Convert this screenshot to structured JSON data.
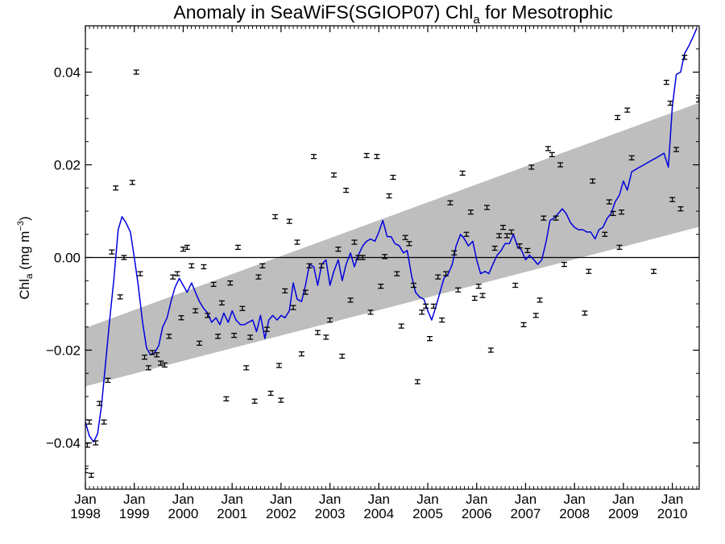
{
  "chart_data": {
    "type": "scatter",
    "title": {
      "prefix": "Anomaly in SeaWiFS(SGIOP07) Chl",
      "sub": "a",
      "suffix": " for Mesotrophic"
    },
    "ylabel": {
      "main": "Chl",
      "sub": "a",
      "unit_prefix": " (mg m",
      "unit_exp": "−3",
      "unit_suffix": ")"
    },
    "xlim": [
      1998.0,
      2010.55
    ],
    "ylim": [
      -0.05,
      0.05
    ],
    "yticks": [
      {
        "value": -0.04,
        "label": "−0.04"
      },
      {
        "value": -0.02,
        "label": "−0.02"
      },
      {
        "value": 0.0,
        "label": "0.00"
      },
      {
        "value": 0.02,
        "label": "0.02"
      },
      {
        "value": 0.04,
        "label": "0.04"
      }
    ],
    "xticks": [
      {
        "value": 1998,
        "month": "Jan",
        "year": "1998"
      },
      {
        "value": 1999,
        "month": "Jan",
        "year": "1999"
      },
      {
        "value": 2000,
        "month": "Jan",
        "year": "2000"
      },
      {
        "value": 2001,
        "month": "Jan",
        "year": "2001"
      },
      {
        "value": 2002,
        "month": "Jan",
        "year": "2002"
      },
      {
        "value": 2003,
        "month": "Jan",
        "year": "2003"
      },
      {
        "value": 2004,
        "month": "Jan",
        "year": "2004"
      },
      {
        "value": 2005,
        "month": "Jan",
        "year": "2005"
      },
      {
        "value": 2006,
        "month": "Jan",
        "year": "2006"
      },
      {
        "value": 2007,
        "month": "Jan",
        "year": "2007"
      },
      {
        "value": 2008,
        "month": "Jan",
        "year": "2008"
      },
      {
        "value": 2009,
        "month": "Jan",
        "year": "2009"
      },
      {
        "value": 2010,
        "month": "Jan",
        "year": "2010"
      }
    ],
    "zero_line": 0.0,
    "trend_band": {
      "color": "#bebebe",
      "x": [
        1998.0,
        2010.55
      ],
      "lower": [
        -0.0278,
        0.0066
      ],
      "upper": [
        -0.0152,
        0.0334
      ]
    },
    "smoothed_line": {
      "color": "#0000dd",
      "points": [
        [
          1998.0,
          -0.0355
        ],
        [
          1998.08,
          -0.0385
        ],
        [
          1998.17,
          -0.0398
        ],
        [
          1998.25,
          -0.038
        ],
        [
          1998.33,
          -0.032
        ],
        [
          1998.42,
          -0.022
        ],
        [
          1998.5,
          -0.013
        ],
        [
          1998.58,
          -0.005
        ],
        [
          1998.67,
          0.006
        ],
        [
          1998.75,
          0.0088
        ],
        [
          1998.83,
          0.0075
        ],
        [
          1998.92,
          0.0055
        ],
        [
          1999.0,
          0.0
        ],
        [
          1999.08,
          -0.006
        ],
        [
          1999.17,
          -0.014
        ],
        [
          1999.25,
          -0.0195
        ],
        [
          1999.33,
          -0.021
        ],
        [
          1999.42,
          -0.0205
        ],
        [
          1999.5,
          -0.019
        ],
        [
          1999.58,
          -0.015
        ],
        [
          1999.67,
          -0.013
        ],
        [
          1999.75,
          -0.0095
        ],
        [
          1999.83,
          -0.0065
        ],
        [
          1999.92,
          -0.0045
        ],
        [
          2000.0,
          -0.006
        ],
        [
          2000.08,
          -0.0075
        ],
        [
          2000.17,
          -0.0055
        ],
        [
          2000.25,
          -0.0075
        ],
        [
          2000.33,
          -0.0095
        ],
        [
          2000.42,
          -0.011
        ],
        [
          2000.5,
          -0.012
        ],
        [
          2000.58,
          -0.014
        ],
        [
          2000.67,
          -0.013
        ],
        [
          2000.75,
          -0.0145
        ],
        [
          2000.83,
          -0.012
        ],
        [
          2000.92,
          -0.014
        ],
        [
          2001.0,
          -0.0115
        ],
        [
          2001.08,
          -0.0135
        ],
        [
          2001.17,
          -0.0145
        ],
        [
          2001.25,
          -0.0145
        ],
        [
          2001.33,
          -0.014
        ],
        [
          2001.42,
          -0.0135
        ],
        [
          2001.5,
          -0.016
        ],
        [
          2001.58,
          -0.0125
        ],
        [
          2001.67,
          -0.0175
        ],
        [
          2001.75,
          -0.0135
        ],
        [
          2001.83,
          -0.0125
        ],
        [
          2001.92,
          -0.0135
        ],
        [
          2002.0,
          -0.0125
        ],
        [
          2002.08,
          -0.013
        ],
        [
          2002.17,
          -0.0115
        ],
        [
          2002.25,
          -0.0055
        ],
        [
          2002.33,
          -0.009
        ],
        [
          2002.42,
          -0.0095
        ],
        [
          2002.5,
          -0.006
        ],
        [
          2002.58,
          -0.0015
        ],
        [
          2002.67,
          -0.002
        ],
        [
          2002.75,
          -0.006
        ],
        [
          2002.83,
          -0.0015
        ],
        [
          2002.92,
          -0.0005
        ],
        [
          2003.0,
          -0.006
        ],
        [
          2003.08,
          -0.003
        ],
        [
          2003.17,
          -0.0005
        ],
        [
          2003.25,
          -0.005
        ],
        [
          2003.33,
          -0.0015
        ],
        [
          2003.42,
          0.001
        ],
        [
          2003.5,
          -0.002
        ],
        [
          2003.58,
          0.0005
        ],
        [
          2003.67,
          0.0025
        ],
        [
          2003.75,
          0.0035
        ],
        [
          2003.83,
          0.004
        ],
        [
          2003.92,
          0.0035
        ],
        [
          2004.0,
          0.0055
        ],
        [
          2004.08,
          0.008
        ],
        [
          2004.17,
          0.0045
        ],
        [
          2004.25,
          0.0045
        ],
        [
          2004.33,
          0.003
        ],
        [
          2004.42,
          0.0025
        ],
        [
          2004.5,
          0.001
        ],
        [
          2004.58,
          0.0015
        ],
        [
          2004.67,
          -0.004
        ],
        [
          2004.75,
          -0.0075
        ],
        [
          2004.83,
          -0.0085
        ],
        [
          2004.92,
          -0.009
        ],
        [
          2005.0,
          -0.0115
        ],
        [
          2005.08,
          -0.0135
        ],
        [
          2005.17,
          -0.0105
        ],
        [
          2005.25,
          -0.0075
        ],
        [
          2005.33,
          -0.0045
        ],
        [
          2005.42,
          -0.0035
        ],
        [
          2005.5,
          -0.0015
        ],
        [
          2005.58,
          0.0025
        ],
        [
          2005.67,
          0.005
        ],
        [
          2005.75,
          0.004
        ],
        [
          2005.83,
          0.0025
        ],
        [
          2005.92,
          0.0035
        ],
        [
          2006.0,
          -0.0005
        ],
        [
          2006.08,
          -0.0035
        ],
        [
          2006.17,
          -0.003
        ],
        [
          2006.25,
          -0.0035
        ],
        [
          2006.33,
          -0.0015
        ],
        [
          2006.42,
          0.0005
        ],
        [
          2006.5,
          0.0015
        ],
        [
          2006.58,
          0.003
        ],
        [
          2006.67,
          0.003
        ],
        [
          2006.75,
          0.005
        ],
        [
          2006.83,
          0.0025
        ],
        [
          2006.92,
          0.0015
        ],
        [
          2007.0,
          -0.0005
        ],
        [
          2007.08,
          0.0005
        ],
        [
          2007.17,
          -0.0005
        ],
        [
          2007.25,
          -0.0015
        ],
        [
          2007.33,
          -0.0005
        ],
        [
          2007.42,
          0.0035
        ],
        [
          2007.5,
          0.008
        ],
        [
          2007.58,
          0.0085
        ],
        [
          2007.67,
          0.0095
        ],
        [
          2007.75,
          0.0105
        ],
        [
          2007.83,
          0.0095
        ],
        [
          2007.92,
          0.0075
        ],
        [
          2008.0,
          0.0065
        ],
        [
          2008.08,
          0.006
        ],
        [
          2008.17,
          0.006
        ],
        [
          2008.25,
          0.0055
        ],
        [
          2008.33,
          0.0055
        ],
        [
          2008.42,
          0.004
        ],
        [
          2008.5,
          0.006
        ],
        [
          2008.58,
          0.0065
        ],
        [
          2008.67,
          0.0085
        ],
        [
          2008.75,
          0.0095
        ],
        [
          2008.83,
          0.012
        ],
        [
          2008.92,
          0.0135
        ],
        [
          2009.0,
          0.0165
        ],
        [
          2009.08,
          0.0145
        ],
        [
          2009.17,
          0.0185
        ],
        [
          2009.25,
          0.019
        ],
        [
          2009.33,
          0.0195
        ],
        [
          2009.42,
          0.02
        ],
        [
          2009.5,
          0.0205
        ],
        [
          2009.58,
          0.021
        ],
        [
          2009.67,
          0.0215
        ],
        [
          2009.75,
          0.022
        ],
        [
          2009.83,
          0.0225
        ],
        [
          2009.92,
          0.0195
        ],
        [
          2010.0,
          0.0325
        ],
        [
          2010.08,
          0.0395
        ],
        [
          2010.17,
          0.04
        ],
        [
          2010.25,
          0.044
        ],
        [
          2010.33,
          0.0455
        ],
        [
          2010.42,
          0.0475
        ],
        [
          2010.5,
          0.0495
        ]
      ]
    },
    "points_color": "#000000",
    "points": [
      [
        1998.0,
        -0.046
      ],
      [
        1998.04,
        -0.0405
      ],
      [
        1998.08,
        -0.0355
      ],
      [
        1998.12,
        -0.047
      ],
      [
        1998.21,
        -0.04
      ],
      [
        1998.29,
        -0.0315
      ],
      [
        1998.38,
        -0.0355
      ],
      [
        1998.46,
        -0.0265
      ],
      [
        1998.54,
        0.0012
      ],
      [
        1998.62,
        0.015
      ],
      [
        1998.71,
        -0.0085
      ],
      [
        1998.79,
        0.0
      ],
      [
        1998.96,
        0.0162
      ],
      [
        1999.04,
        0.04
      ],
      [
        1999.12,
        -0.0035
      ],
      [
        1999.21,
        -0.0215
      ],
      [
        1999.29,
        -0.0238
      ],
      [
        1999.37,
        -0.0205
      ],
      [
        1999.46,
        -0.021
      ],
      [
        1999.54,
        -0.0228
      ],
      [
        1999.62,
        -0.0232
      ],
      [
        1999.71,
        -0.017
      ],
      [
        1999.79,
        -0.0042
      ],
      [
        1999.88,
        -0.0035
      ],
      [
        1999.96,
        -0.013
      ],
      [
        2000.0,
        0.0018
      ],
      [
        2000.08,
        0.0022
      ],
      [
        2000.17,
        -0.0018
      ],
      [
        2000.25,
        -0.0115
      ],
      [
        2000.33,
        -0.0185
      ],
      [
        2000.42,
        -0.002
      ],
      [
        2000.5,
        -0.0125
      ],
      [
        2000.62,
        -0.0058
      ],
      [
        2000.71,
        -0.017
      ],
      [
        2000.79,
        -0.0098
      ],
      [
        2000.88,
        -0.0305
      ],
      [
        2000.96,
        -0.0055
      ],
      [
        2001.04,
        -0.0168
      ],
      [
        2001.12,
        0.0022
      ],
      [
        2001.21,
        -0.011
      ],
      [
        2001.29,
        -0.0238
      ],
      [
        2001.37,
        -0.0172
      ],
      [
        2001.46,
        -0.031
      ],
      [
        2001.54,
        -0.0042
      ],
      [
        2001.62,
        -0.0018
      ],
      [
        2001.71,
        -0.0155
      ],
      [
        2001.79,
        -0.0293
      ],
      [
        2001.88,
        0.0088
      ],
      [
        2001.96,
        -0.0233
      ],
      [
        2002.0,
        -0.0308
      ],
      [
        2002.08,
        -0.0072
      ],
      [
        2002.17,
        0.0078
      ],
      [
        2002.25,
        -0.0108
      ],
      [
        2002.33,
        0.0033
      ],
      [
        2002.42,
        -0.0208
      ],
      [
        2002.5,
        -0.0075
      ],
      [
        2002.58,
        -0.0018
      ],
      [
        2002.67,
        0.0218
      ],
      [
        2002.75,
        -0.0162
      ],
      [
        2002.83,
        -0.0018
      ],
      [
        2002.92,
        -0.0172
      ],
      [
        2003.0,
        -0.0135
      ],
      [
        2003.08,
        0.0178
      ],
      [
        2003.17,
        0.0018
      ],
      [
        2003.25,
        -0.0213
      ],
      [
        2003.33,
        0.0145
      ],
      [
        2003.42,
        -0.0092
      ],
      [
        2003.5,
        0.0033
      ],
      [
        2003.58,
        0.0
      ],
      [
        2003.67,
        0.0
      ],
      [
        2003.75,
        0.022
      ],
      [
        2003.83,
        -0.0118
      ],
      [
        2003.96,
        0.0218
      ],
      [
        2004.04,
        -0.0062
      ],
      [
        2004.12,
        0.0002
      ],
      [
        2004.21,
        0.0133
      ],
      [
        2004.29,
        0.0173
      ],
      [
        2004.37,
        -0.0035
      ],
      [
        2004.46,
        -0.0148
      ],
      [
        2004.54,
        0.0043
      ],
      [
        2004.62,
        0.003
      ],
      [
        2004.71,
        -0.006
      ],
      [
        2004.79,
        -0.0268
      ],
      [
        2004.88,
        -0.0118
      ],
      [
        2004.96,
        -0.0105
      ],
      [
        2005.04,
        -0.0175
      ],
      [
        2005.12,
        -0.0105
      ],
      [
        2005.21,
        -0.0042
      ],
      [
        2005.29,
        -0.0135
      ],
      [
        2005.37,
        -0.0035
      ],
      [
        2005.46,
        0.0118
      ],
      [
        2005.54,
        0.001
      ],
      [
        2005.62,
        -0.007
      ],
      [
        2005.71,
        0.0182
      ],
      [
        2005.79,
        0.005
      ],
      [
        2005.88,
        0.0098
      ],
      [
        2005.96,
        -0.0088
      ],
      [
        2006.04,
        -0.0062
      ],
      [
        2006.12,
        -0.0082
      ],
      [
        2006.21,
        0.0108
      ],
      [
        2006.29,
        -0.02
      ],
      [
        2006.37,
        0.002
      ],
      [
        2006.46,
        0.0047
      ],
      [
        2006.54,
        0.0065
      ],
      [
        2006.62,
        0.0047
      ],
      [
        2006.71,
        0.0055
      ],
      [
        2006.79,
        -0.006
      ],
      [
        2006.88,
        0.0025
      ],
      [
        2006.96,
        -0.0145
      ],
      [
        2007.04,
        0.0015
      ],
      [
        2007.12,
        0.0195
      ],
      [
        2007.21,
        -0.0125
      ],
      [
        2007.29,
        -0.0092
      ],
      [
        2007.37,
        0.0085
      ],
      [
        2007.46,
        0.0235
      ],
      [
        2007.54,
        0.0222
      ],
      [
        2007.62,
        0.0085
      ],
      [
        2007.71,
        0.02
      ],
      [
        2007.79,
        -0.0015
      ],
      [
        2008.21,
        -0.012
      ],
      [
        2008.29,
        -0.003
      ],
      [
        2008.37,
        0.0165
      ],
      [
        2008.62,
        0.005
      ],
      [
        2008.71,
        0.012
      ],
      [
        2008.79,
        0.0095
      ],
      [
        2008.88,
        0.0302
      ],
      [
        2008.92,
        0.0022
      ],
      [
        2008.96,
        0.0098
      ],
      [
        2009.08,
        0.0318
      ],
      [
        2009.17,
        0.0215
      ],
      [
        2009.62,
        -0.003
      ],
      [
        2009.88,
        0.0378
      ],
      [
        2009.96,
        0.0333
      ],
      [
        2010.0,
        0.0125
      ],
      [
        2010.08,
        0.0233
      ],
      [
        2010.17,
        0.0105
      ],
      [
        2010.25,
        0.0432
      ],
      [
        2010.54,
        0.034
      ]
    ],
    "grid": false,
    "legend": "none"
  }
}
